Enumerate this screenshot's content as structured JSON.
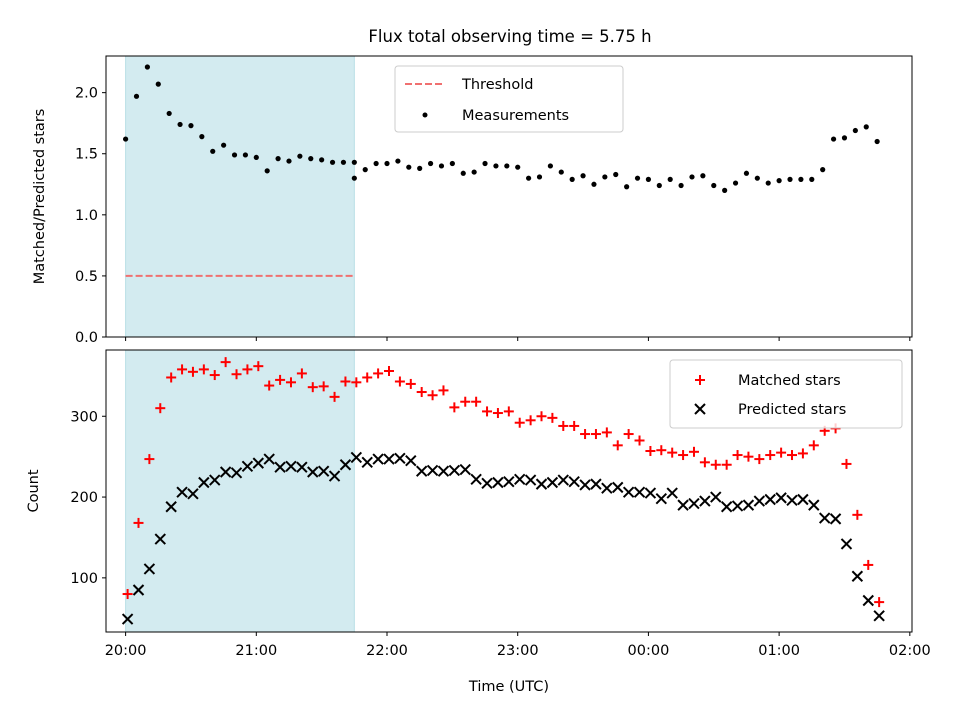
{
  "chart_data": [
    {
      "type": "scatter",
      "title": "Flux total observing time = 5.75 h",
      "xlabel": "",
      "ylabel": "Matched/Predicted stars",
      "xlim": [
        "19:51",
        "02:01"
      ],
      "ylim": [
        0.0,
        2.3
      ],
      "yticks": [
        0.0,
        0.5,
        1.0,
        1.5,
        2.0
      ],
      "ytick_labels": [
        "0.0",
        "0.5",
        "1.0",
        "1.5",
        "2.0"
      ],
      "observing_window": [
        "20:00",
        "21:45"
      ],
      "observing_window_color": "#d3ebf0",
      "legend_position": "top-center",
      "threshold": {
        "name": "Threshold",
        "value": 0.5,
        "color": "#f07070",
        "style": "dashed"
      },
      "series": [
        {
          "name": "Measurements",
          "marker": "dot",
          "color": "#000000",
          "x": [
            "20:00",
            "20:05",
            "20:10",
            "20:15",
            "20:20",
            "20:25",
            "20:30",
            "20:35",
            "20:40",
            "20:45",
            "20:50",
            "20:55",
            "21:00",
            "21:05",
            "21:10",
            "21:15",
            "21:20",
            "21:25",
            "21:30",
            "21:35",
            "21:40",
            "21:45",
            "21:50",
            "21:55",
            "22:00",
            "22:05",
            "22:10",
            "22:15",
            "22:20",
            "22:25",
            "22:30",
            "22:35",
            "22:40",
            "22:45",
            "22:50",
            "22:55",
            "23:00",
            "23:05",
            "23:10",
            "23:15",
            "23:20",
            "23:25",
            "23:30",
            "23:35",
            "23:40",
            "23:45",
            "23:50",
            "23:55",
            "00:00",
            "00:05",
            "00:10",
            "00:15",
            "00:20",
            "00:25",
            "00:30",
            "00:35",
            "00:40",
            "00:45",
            "00:50",
            "00:55",
            "01:00",
            "01:05",
            "01:10",
            "01:15",
            "01:20",
            "01:25",
            "01:30",
            "01:35",
            "01:40",
            "01:45"
          ],
          "y": [
            1.62,
            1.97,
            2.21,
            2.07,
            1.83,
            1.74,
            1.73,
            1.64,
            1.52,
            1.57,
            1.49,
            1.49,
            1.47,
            1.36,
            1.46,
            1.44,
            1.48,
            1.46,
            1.45,
            1.43,
            1.43,
            1.43,
            1.37,
            1.42,
            1.42,
            1.44,
            1.39,
            1.38,
            1.42,
            1.4,
            1.42,
            1.34,
            1.35,
            1.42,
            1.4,
            1.4,
            1.39,
            1.3,
            1.31,
            1.4,
            1.35,
            1.29,
            1.32,
            1.25,
            1.31,
            1.33,
            1.23,
            1.3,
            1.29,
            1.24,
            1.29,
            1.24,
            1.31,
            1.32,
            1.24,
            1.2,
            1.26,
            1.34,
            1.3,
            1.26,
            1.28,
            1.29,
            1.29,
            1.29,
            1.37,
            1.62,
            1.63,
            1.69,
            1.72,
            1.6
          ]
        }
      ],
      "extra_point": {
        "x": "21:45",
        "y": 1.3
      }
    },
    {
      "type": "scatter",
      "title": "",
      "xlabel": "Time (UTC)",
      "ylabel": "Count",
      "xlim": [
        "19:51",
        "02:01"
      ],
      "ylim": [
        33,
        382
      ],
      "yticks": [
        100,
        200,
        300
      ],
      "ytick_labels": [
        "100",
        "200",
        "300"
      ],
      "xticks": [
        "20:00",
        "21:00",
        "22:00",
        "23:00",
        "00:00",
        "01:00",
        "02:00"
      ],
      "observing_window": [
        "20:00",
        "21:45"
      ],
      "observing_window_color": "#d3ebf0",
      "legend_position": "top-right",
      "series": [
        {
          "name": "Matched stars",
          "marker": "plus",
          "color": "#ff0000",
          "x": [
            "20:00",
            "20:05",
            "20:10",
            "20:15",
            "20:20",
            "20:25",
            "20:30",
            "20:35",
            "20:40",
            "20:45",
            "20:50",
            "20:55",
            "21:00",
            "21:05",
            "21:10",
            "21:15",
            "21:20",
            "21:25",
            "21:30",
            "21:35",
            "21:40",
            "21:45",
            "21:50",
            "21:55",
            "22:00",
            "22:05",
            "22:10",
            "22:15",
            "22:20",
            "22:25",
            "22:30",
            "22:35",
            "22:40",
            "22:45",
            "22:50",
            "22:55",
            "23:00",
            "23:05",
            "23:10",
            "23:15",
            "23:20",
            "23:25",
            "23:30",
            "23:35",
            "23:40",
            "23:45",
            "23:50",
            "23:55",
            "00:00",
            "00:05",
            "00:10",
            "00:15",
            "00:20",
            "00:25",
            "00:30",
            "00:35",
            "00:40",
            "00:45",
            "00:50",
            "00:55",
            "01:00",
            "01:05",
            "01:10",
            "01:15",
            "01:20",
            "01:25",
            "01:30",
            "01:35",
            "01:40",
            "01:45"
          ],
          "y": [
            80,
            168,
            247,
            310,
            348,
            358,
            355,
            358,
            351,
            367,
            352,
            358,
            362,
            338,
            345,
            342,
            353,
            336,
            337,
            324,
            343,
            342,
            348,
            353,
            356,
            343,
            340,
            330,
            326,
            332,
            311,
            318,
            318,
            306,
            304,
            306,
            292,
            295,
            300,
            298,
            288,
            288,
            278,
            278,
            280,
            264,
            278,
            270,
            257,
            258,
            255,
            252,
            256,
            243,
            240,
            240,
            252,
            250,
            247,
            252,
            255,
            252,
            254,
            264,
            282,
            285,
            241,
            178,
            116,
            70
          ]
        },
        {
          "name": "Predicted stars",
          "marker": "cross",
          "color": "#000000",
          "x": [
            "20:00",
            "20:05",
            "20:10",
            "20:15",
            "20:20",
            "20:25",
            "20:30",
            "20:35",
            "20:40",
            "20:45",
            "20:50",
            "20:55",
            "21:00",
            "21:05",
            "21:10",
            "21:15",
            "21:20",
            "21:25",
            "21:30",
            "21:35",
            "21:40",
            "21:45",
            "21:50",
            "21:55",
            "22:00",
            "22:05",
            "22:10",
            "22:15",
            "22:20",
            "22:25",
            "22:30",
            "22:35",
            "22:40",
            "22:45",
            "22:50",
            "22:55",
            "23:00",
            "23:05",
            "23:10",
            "23:15",
            "23:20",
            "23:25",
            "23:30",
            "23:35",
            "23:40",
            "23:45",
            "23:50",
            "23:55",
            "00:00",
            "00:05",
            "00:10",
            "00:15",
            "00:20",
            "00:25",
            "00:30",
            "00:35",
            "00:40",
            "00:45",
            "00:50",
            "00:55",
            "01:00",
            "01:05",
            "01:10",
            "01:15",
            "01:20",
            "01:25",
            "01:30",
            "01:35",
            "01:40",
            "01:45"
          ],
          "y": [
            49,
            85,
            111,
            148,
            188,
            206,
            204,
            218,
            221,
            231,
            230,
            238,
            242,
            247,
            237,
            238,
            237,
            231,
            232,
            226,
            240,
            249,
            243,
            247,
            247,
            248,
            245,
            232,
            233,
            232,
            233,
            234,
            222,
            217,
            218,
            219,
            222,
            221,
            216,
            218,
            221,
            219,
            215,
            216,
            211,
            212,
            206,
            206,
            205,
            198,
            205,
            190,
            192,
            195,
            200,
            188,
            189,
            190,
            195,
            197,
            199,
            196,
            197,
            190,
            174,
            173,
            142,
            102,
            72,
            53
          ]
        }
      ]
    }
  ]
}
